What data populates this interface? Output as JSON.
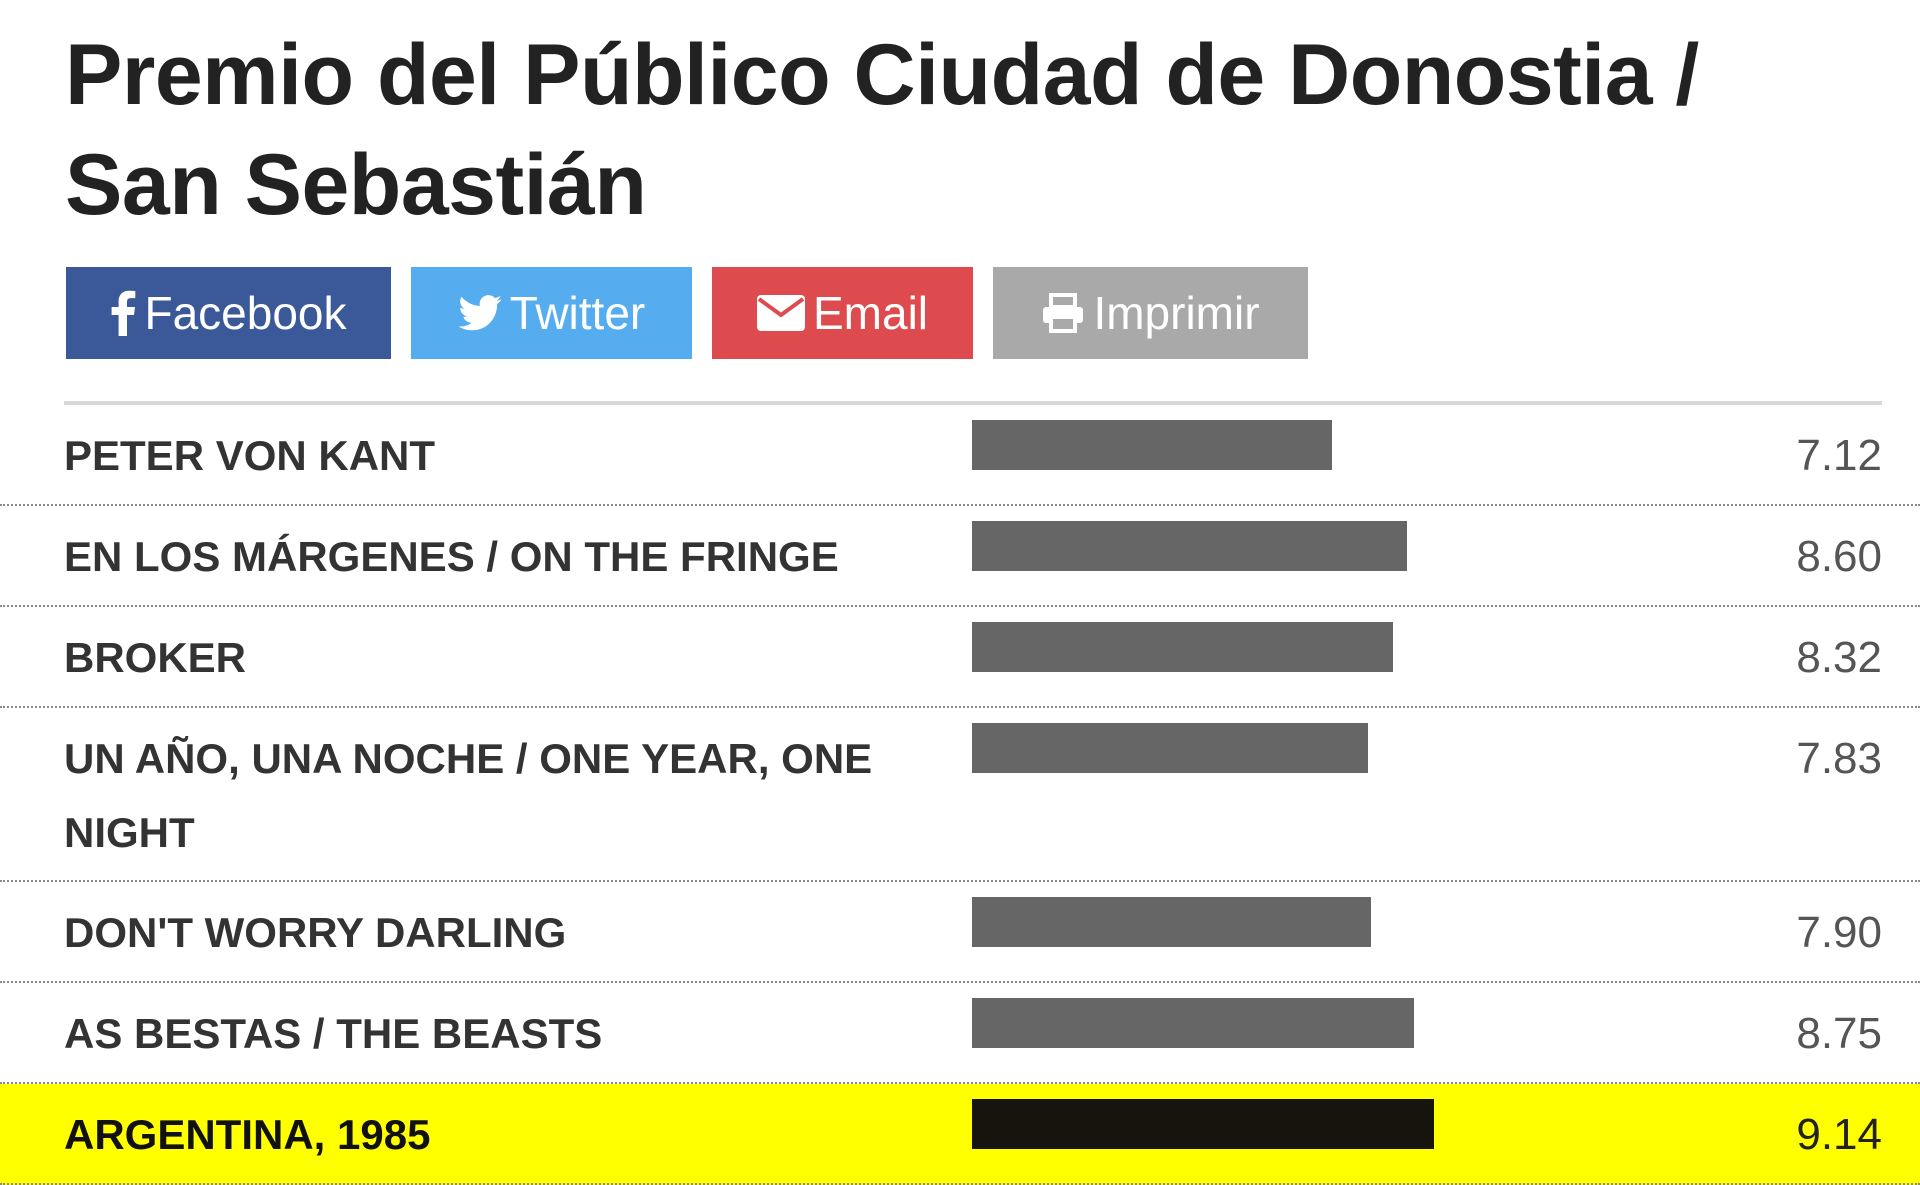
{
  "page": {
    "title": "Premio del Público Ciudad de Donostia / San Sebastián"
  },
  "share": {
    "buttons": [
      {
        "label": "Facebook",
        "icon": "facebook-icon",
        "color": "#3b5998"
      },
      {
        "label": "Twitter",
        "icon": "twitter-icon",
        "color": "#55acee"
      },
      {
        "label": "Email",
        "icon": "envelope-icon",
        "color": "#dd4b4e"
      },
      {
        "label": "Imprimir",
        "icon": "printer-icon",
        "color": "#a9a9a9"
      }
    ]
  },
  "chart_data": {
    "type": "bar",
    "orientation": "horizontal",
    "categories": [
      "PETER VON KANT",
      "EN LOS MÁRGENES / ON THE FRINGE",
      "BROKER",
      "UN AÑO, UNA NOCHE / ONE YEAR, ONE NIGHT",
      "DON'T WORRY DARLING",
      "AS BESTAS / THE BEASTS",
      "ARGENTINA, 1985"
    ],
    "values": [
      7.12,
      8.6,
      8.32,
      7.83,
      7.9,
      8.75,
      9.14
    ],
    "value_labels": [
      "7.12",
      "8.60",
      "8.32",
      "7.83",
      "7.90",
      "8.75",
      "9.14"
    ],
    "xlim": [
      0,
      10
    ],
    "highlighted": "ARGENTINA, 1985",
    "colors": {
      "bar": "#666666",
      "highlight_bar": "#16140c",
      "highlight_row": "#ffff00"
    },
    "title": "",
    "xlabel": "",
    "ylabel": ""
  }
}
